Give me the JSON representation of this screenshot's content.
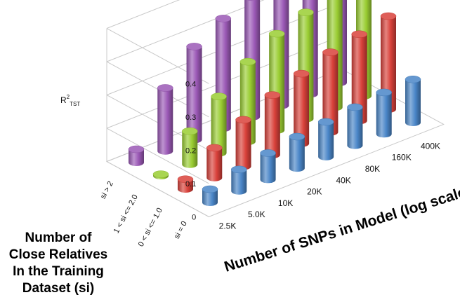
{
  "chart_data": {
    "type": "bar",
    "style": "3d-cylinder",
    "x_label": "Number of SNPs in Model (log scale)",
    "x_categories": [
      "2.5K",
      "5.0K",
      "10K",
      "20K",
      "40K",
      "80K",
      "160K",
      "400K"
    ],
    "y_label_main": "R",
    "y_label_sup": "2",
    "y_label_sub": "TST",
    "y_ticks": [
      "0",
      "0.1",
      "0.2",
      "0.3",
      "0.4"
    ],
    "ylim": [
      0,
      0.4
    ],
    "z_label": [
      "Number of",
      "Close Relatives",
      "In the Training",
      "Dataset (si)"
    ],
    "series": [
      {
        "name": "si = 0",
        "color": "#4a86c8",
        "values": [
          0.04,
          0.065,
          0.08,
          0.095,
          0.105,
          0.115,
          0.125,
          0.13
        ]
      },
      {
        "name": "0 < si <= 1.0",
        "color": "#d9413a",
        "values": [
          0.03,
          0.09,
          0.14,
          0.18,
          0.21,
          0.24,
          0.26,
          0.28
        ]
      },
      {
        "name": "1 < si <= 2.0",
        "color": "#9acd32",
        "values": [
          0.005,
          0.1,
          0.17,
          0.24,
          0.29,
          0.32,
          0.35,
          0.36
        ]
      },
      {
        "name": "si > 2",
        "color": "#9b59b6",
        "values": [
          0.04,
          0.19,
          0.28,
          0.33,
          0.36,
          0.38,
          0.4,
          0.4
        ]
      }
    ],
    "grid": true
  }
}
